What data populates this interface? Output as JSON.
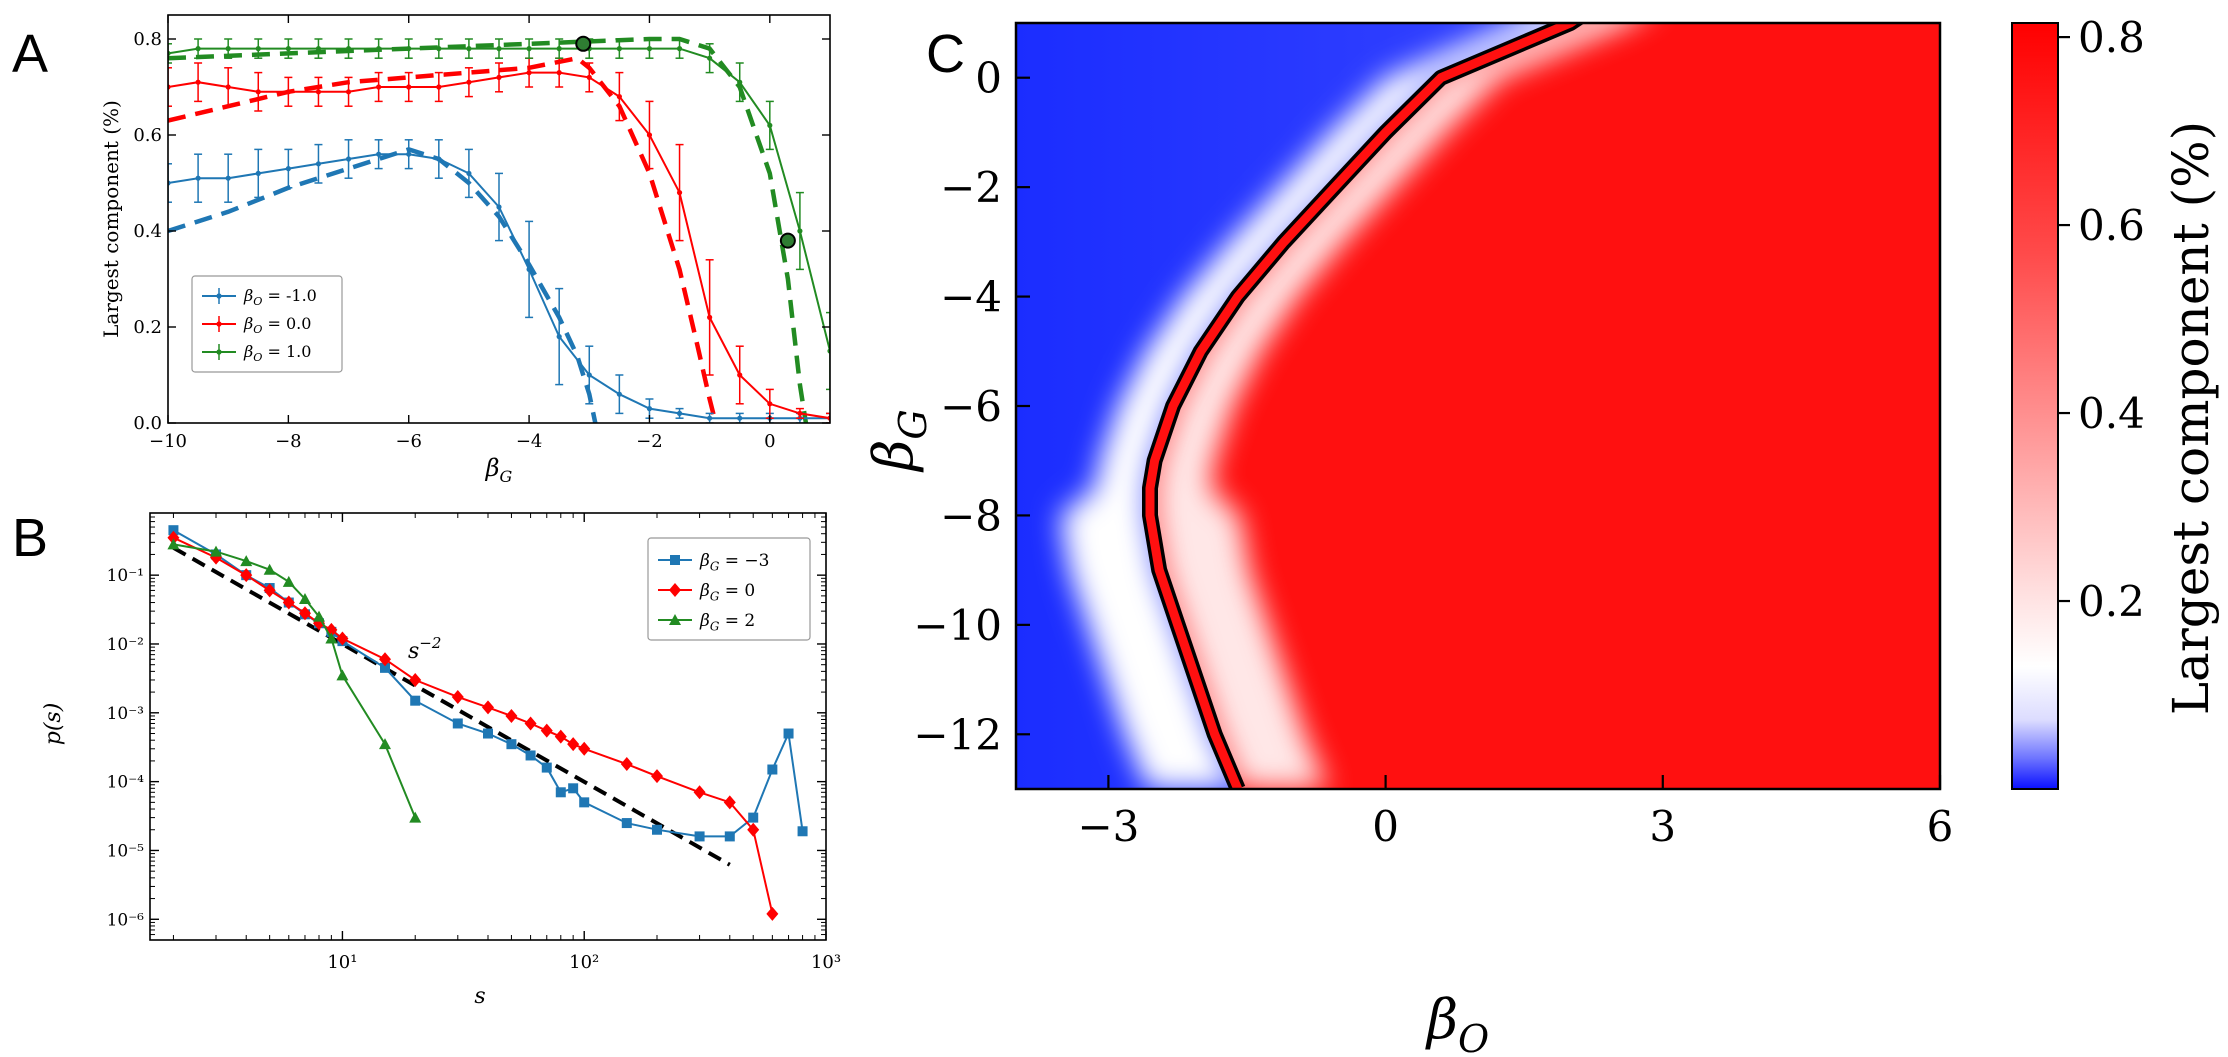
{
  "panels": {
    "a": {
      "letter": "A"
    },
    "b": {
      "letter": "B"
    },
    "c": {
      "letter": "C"
    }
  },
  "chart_data": [
    {
      "panel": "A",
      "type": "line",
      "xlabel": "β_G",
      "ylabel": "Largest component (%)",
      "xlim": [
        -10,
        1
      ],
      "ylim": [
        0,
        0.85
      ],
      "xticks": [
        -10,
        -8,
        -6,
        -4,
        -2,
        0
      ],
      "yticks": [
        0.0,
        0.2,
        0.4,
        0.6,
        0.8
      ],
      "xtick_labels": [
        "−10",
        "−8",
        "−6",
        "−4",
        "−2",
        "0"
      ],
      "ytick_labels": [
        "0.0",
        "0.2",
        "0.4",
        "0.6",
        "0.8"
      ],
      "legend_position": "lower-left",
      "series": [
        {
          "name": "β_O = -1.0",
          "color": "#1f77b4",
          "x": [
            -10,
            -9.5,
            -9,
            -8.5,
            -8,
            -7.5,
            -7,
            -6.5,
            -6,
            -5.5,
            -5,
            -4.5,
            -4,
            -3.5,
            -3,
            -2.5,
            -2,
            -1.5,
            -1,
            -0.5,
            0,
            0.5,
            1
          ],
          "y": [
            0.5,
            0.51,
            0.51,
            0.52,
            0.53,
            0.54,
            0.55,
            0.56,
            0.56,
            0.55,
            0.52,
            0.45,
            0.32,
            0.18,
            0.1,
            0.06,
            0.03,
            0.02,
            0.01,
            0.01,
            0.01,
            0.01,
            0.01
          ],
          "err": [
            0.04,
            0.05,
            0.05,
            0.05,
            0.04,
            0.04,
            0.04,
            0.03,
            0.03,
            0.04,
            0.05,
            0.07,
            0.1,
            0.1,
            0.06,
            0.04,
            0.02,
            0.01,
            0.01,
            0.01,
            0.01,
            0.01,
            0.01
          ]
        },
        {
          "name": "β_O = 0.0",
          "color": "#ff0000",
          "x": [
            -10,
            -9.5,
            -9,
            -8.5,
            -8,
            -7.5,
            -7,
            -6.5,
            -6,
            -5.5,
            -5,
            -4.5,
            -4,
            -3.5,
            -3,
            -2.5,
            -2,
            -1.5,
            -1,
            -0.5,
            0,
            0.5,
            1
          ],
          "y": [
            0.7,
            0.71,
            0.7,
            0.69,
            0.69,
            0.69,
            0.69,
            0.7,
            0.7,
            0.7,
            0.71,
            0.72,
            0.73,
            0.73,
            0.72,
            0.68,
            0.6,
            0.48,
            0.22,
            0.1,
            0.04,
            0.02,
            0.01
          ],
          "err": [
            0.04,
            0.04,
            0.04,
            0.04,
            0.03,
            0.03,
            0.03,
            0.03,
            0.03,
            0.03,
            0.03,
            0.03,
            0.03,
            0.03,
            0.03,
            0.05,
            0.07,
            0.1,
            0.12,
            0.06,
            0.03,
            0.01,
            0.01
          ]
        },
        {
          "name": "β_O = 1.0",
          "color": "#228b22",
          "x": [
            -10,
            -9.5,
            -9,
            -8.5,
            -8,
            -7.5,
            -7,
            -6.5,
            -6,
            -5.5,
            -5,
            -4.5,
            -4,
            -3.5,
            -3,
            -2.5,
            -2,
            -1.5,
            -1,
            -0.5,
            0,
            0.5,
            1
          ],
          "y": [
            0.77,
            0.78,
            0.78,
            0.78,
            0.78,
            0.78,
            0.78,
            0.78,
            0.78,
            0.78,
            0.78,
            0.78,
            0.78,
            0.78,
            0.78,
            0.78,
            0.78,
            0.78,
            0.76,
            0.71,
            0.62,
            0.4,
            0.15
          ],
          "err": [
            0.02,
            0.02,
            0.02,
            0.02,
            0.02,
            0.02,
            0.02,
            0.02,
            0.02,
            0.02,
            0.02,
            0.02,
            0.02,
            0.02,
            0.02,
            0.02,
            0.02,
            0.02,
            0.03,
            0.04,
            0.05,
            0.08,
            0.08
          ]
        }
      ],
      "theory_dashed": [
        {
          "color": "#1f77b4",
          "x": [
            -10,
            -9,
            -8,
            -7,
            -6,
            -5.5,
            -5,
            -4.5,
            -4,
            -3.5,
            -3.2,
            -3.0,
            -2.9
          ],
          "y": [
            0.4,
            0.44,
            0.49,
            0.53,
            0.57,
            0.55,
            0.5,
            0.43,
            0.33,
            0.22,
            0.14,
            0.06,
            0.0
          ]
        },
        {
          "color": "#ff0000",
          "x": [
            -10,
            -9,
            -8,
            -7,
            -6,
            -5,
            -4,
            -3.2,
            -3,
            -2.5,
            -2,
            -1.5,
            -1.2,
            -1.0,
            -0.9
          ],
          "y": [
            0.63,
            0.66,
            0.69,
            0.71,
            0.72,
            0.73,
            0.74,
            0.76,
            0.74,
            0.66,
            0.52,
            0.32,
            0.16,
            0.05,
            0.0
          ]
        },
        {
          "color": "#228b22",
          "x": [
            -10,
            -8,
            -6,
            -4,
            -2,
            -1.5,
            -1,
            -0.5,
            0,
            0.3,
            0.5,
            0.6
          ],
          "y": [
            0.76,
            0.77,
            0.78,
            0.79,
            0.8,
            0.8,
            0.78,
            0.7,
            0.52,
            0.3,
            0.08,
            0.0
          ]
        }
      ],
      "highlight_points": [
        {
          "x": -3.1,
          "y": 0.79
        },
        {
          "x": 0.3,
          "y": 0.38
        }
      ]
    },
    {
      "panel": "B",
      "type": "line",
      "xlabel": "s",
      "ylabel": "p(s)",
      "xscale": "log",
      "yscale": "log",
      "xlim": [
        1.6,
        1000
      ],
      "ylim": [
        5e-07,
        0.8
      ],
      "xtick_labels": [
        "10¹",
        "10²",
        "10³"
      ],
      "ytick_labels": [
        "10⁻⁶",
        "10⁻⁵",
        "10⁻⁴",
        "10⁻³",
        "10⁻²",
        "10⁻¹"
      ],
      "annotation": "s⁻²",
      "legend_position": "top-right",
      "series": [
        {
          "name": "β_G = −3",
          "color": "#1f77b4",
          "marker": "square",
          "x": [
            2,
            3,
            4,
            5,
            6,
            7,
            8,
            9,
            10,
            15,
            20,
            30,
            40,
            50,
            60,
            70,
            80,
            90,
            100,
            150,
            200,
            300,
            400,
            500,
            600,
            700,
            800
          ],
          "y": [
            0.45,
            0.2,
            0.1,
            0.065,
            0.04,
            0.027,
            0.02,
            0.015,
            0.011,
            0.0045,
            0.0015,
            0.0007,
            0.0005,
            0.00035,
            0.00024,
            0.00016,
            7e-05,
            8e-05,
            5e-05,
            2.5e-05,
            2e-05,
            1.6e-05,
            1.6e-05,
            3e-05,
            0.00015,
            0.0005,
            1.9e-05
          ]
        },
        {
          "name": "β_G = 0",
          "color": "#ff0000",
          "marker": "diamond",
          "x": [
            2,
            3,
            4,
            5,
            6,
            7,
            8,
            9,
            10,
            15,
            20,
            30,
            40,
            50,
            60,
            70,
            80,
            90,
            100,
            150,
            200,
            300,
            400,
            500,
            600
          ],
          "y": [
            0.35,
            0.18,
            0.1,
            0.06,
            0.04,
            0.028,
            0.02,
            0.016,
            0.012,
            0.006,
            0.003,
            0.0017,
            0.0012,
            0.0009,
            0.0007,
            0.00055,
            0.00045,
            0.00035,
            0.0003,
            0.00018,
            0.00012,
            7e-05,
            5e-05,
            2e-05,
            1.2e-06
          ]
        },
        {
          "name": "β_G = 2",
          "color": "#228b22",
          "marker": "triangle",
          "x": [
            2,
            3,
            4,
            5,
            6,
            7,
            8,
            9,
            10,
            15,
            20
          ],
          "y": [
            0.28,
            0.22,
            0.16,
            0.12,
            0.08,
            0.045,
            0.025,
            0.012,
            0.0035,
            0.00035,
            3e-05
          ]
        }
      ],
      "reference_line": {
        "label": "s⁻²",
        "x": [
          2,
          400
        ],
        "y": [
          0.25,
          6.2e-06
        ]
      }
    },
    {
      "panel": "C",
      "type": "heatmap",
      "xlabel": "β_O",
      "ylabel": "β_G",
      "xlim": [
        -4,
        6
      ],
      "ylim": [
        -13,
        1
      ],
      "xtick_labels": [
        "−3",
        "0",
        "3",
        "6"
      ],
      "ytick_labels": [
        "0",
        "−2",
        "−4",
        "−6",
        "−8",
        "−10",
        "−12"
      ],
      "colorbar_label": "Largest component (%)",
      "colorbar_ticks": [
        "0.2",
        "0.4",
        "0.6",
        "0.8"
      ],
      "colormap": "bwr",
      "boundary_contour": {
        "color": "#ff0000",
        "beta_G": [
          -13,
          -12,
          -11,
          -10,
          -9,
          -8,
          -7.5,
          -7,
          -6,
          -5,
          -4,
          -3,
          -2,
          -1,
          0,
          1
        ],
        "beta_O": [
          -1.6,
          -1.85,
          -2.05,
          -2.25,
          -2.45,
          -2.55,
          -2.55,
          -2.5,
          -2.3,
          -2.0,
          -1.6,
          -1.1,
          -0.55,
          0.0,
          0.6,
          2.0
        ]
      }
    }
  ]
}
